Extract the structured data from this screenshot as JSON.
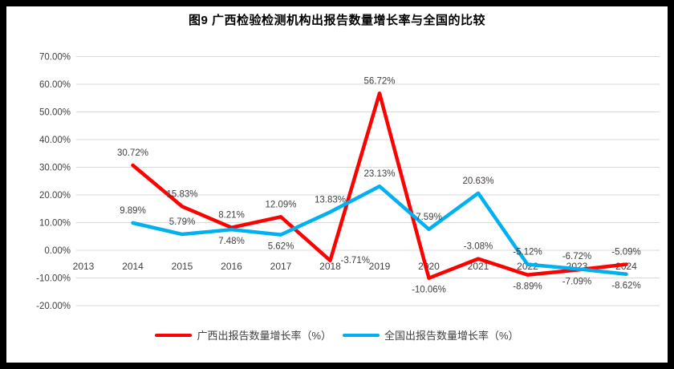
{
  "title": "图9 广西检验检测机构出报告数量增长率与全国的比较",
  "legend": {
    "items": [
      {
        "label": "广西出报告数量增长率（%）",
        "color": "#FF0000"
      },
      {
        "label": "全国出报告数量增长率（%）",
        "color": "#00B0F0"
      }
    ]
  },
  "colors": {
    "guangxi_series": "#FF0000",
    "national_series": "#00B0F0",
    "gridline": "#D9D9D9",
    "axis_text": "#404040",
    "frame_border": "#000000"
  },
  "chart_data": {
    "type": "line",
    "title": "图9 广西检验检测机构出报告数量增长率与全国的比较",
    "categories": [
      "2013",
      "2014",
      "2015",
      "2016",
      "2017",
      "2018",
      "2019",
      "2020",
      "2021",
      "2022",
      "2023",
      "2024"
    ],
    "series": [
      {
        "name": "广西出报告数量增长率（%）",
        "color": "#FF0000",
        "values": [
          null,
          30.72,
          15.83,
          8.21,
          12.09,
          -3.71,
          56.72,
          -10.06,
          -3.08,
          -8.89,
          -7.09,
          -5.09
        ]
      },
      {
        "name": "全国出报告数量增长率（%）",
        "color": "#00B0F0",
        "values": [
          null,
          9.89,
          5.79,
          7.48,
          5.62,
          13.83,
          23.13,
          7.59,
          20.63,
          -5.12,
          -6.72,
          -8.62
        ]
      }
    ],
    "xlabel": "",
    "ylabel": "",
    "y_axis": {
      "min": -20,
      "max": 70,
      "step": 10,
      "tick_labels": [
        "70.00%",
        "60.00%",
        "50.00%",
        "40.00%",
        "30.00%",
        "20.00%",
        "10.00%",
        "0.00%",
        "-10.00%",
        "-20.00%"
      ]
    },
    "grid": true,
    "data_labels": true,
    "legend_position": "bottom"
  }
}
